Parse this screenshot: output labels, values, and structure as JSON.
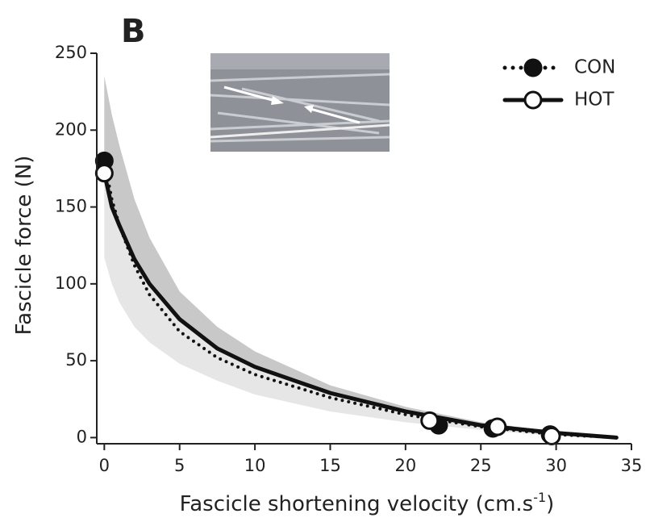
{
  "panel_label": "B",
  "chart_data": {
    "type": "line",
    "y_label": "Fascicle force (N)",
    "x_label": {
      "main": "Fascicle shortening velocity (cm.s",
      "sup": "-1",
      "end": ")"
    },
    "xlim": [
      -0.5,
      35
    ],
    "xticks": [
      0,
      5,
      10,
      15,
      20,
      25,
      30,
      35
    ],
    "ylim": [
      -4,
      250
    ],
    "yticks": [
      0,
      50,
      100,
      150,
      200,
      250
    ],
    "x": [
      0,
      0.5,
      1,
      2,
      3,
      5,
      7.5,
      10,
      15,
      20,
      25,
      30,
      34
    ],
    "bands": [
      {
        "color": "#e6e6e6",
        "lower": [
          117,
          100,
          88,
          72,
          62,
          48,
          37,
          28,
          17,
          10,
          5,
          1,
          0
        ],
        "upper": [
          235,
          210,
          190,
          155,
          130,
          95,
          72,
          56,
          34,
          20,
          10,
          4,
          0
        ]
      },
      {
        "color": "#c8c8c8",
        "lower": [
          168,
          147,
          135,
          114,
          98,
          76,
          57,
          45,
          28,
          16,
          8,
          3,
          0
        ],
        "upper": [
          235,
          210,
          190,
          155,
          130,
          95,
          72,
          56,
          34,
          20,
          10,
          4,
          0
        ]
      }
    ],
    "series": [
      {
        "name": "CON",
        "color": "#111111",
        "style": "dotted",
        "marker": "filled",
        "values": [
          180,
          155,
          138,
          112,
          93,
          69,
          52,
          41,
          26,
          15,
          7,
          2,
          0
        ],
        "points_x": [
          0,
          22.2,
          25.8,
          29.6
        ],
        "points_y": [
          180,
          8,
          6,
          2
        ]
      },
      {
        "name": "HOT",
        "color": "#111111",
        "style": "solid",
        "marker": "open",
        "values": [
          172,
          150,
          138,
          116,
          100,
          77,
          58,
          46,
          29,
          17,
          8,
          3,
          0
        ],
        "points_x": [
          0,
          21.6,
          26.1,
          29.7
        ],
        "points_y": [
          172,
          11,
          7,
          1
        ]
      }
    ]
  }
}
